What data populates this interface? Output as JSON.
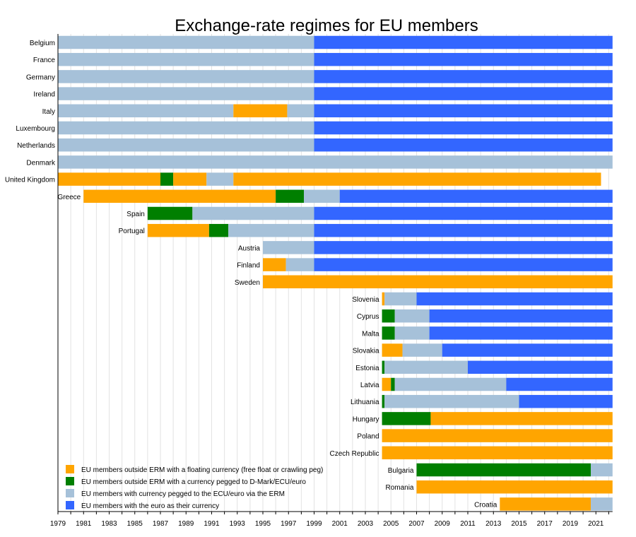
{
  "chart_data": {
    "type": "bar",
    "title": "Exchange-rate regimes for EU members",
    "xlim": [
      1979,
      2022.3
    ],
    "x_ticks": [
      1979,
      1981,
      1983,
      1985,
      1987,
      1989,
      1991,
      1993,
      1995,
      1997,
      1999,
      2001,
      2003,
      2005,
      2007,
      2009,
      2011,
      2013,
      2015,
      2017,
      2019,
      2021
    ],
    "grid": "vertical lines at every year",
    "legend_position": "bottom-left",
    "categories": {
      "floating": {
        "label": "EU members outside ERM with a floating currency (free float or crawling peg)",
        "color": "#ffa500"
      },
      "pegged_outside": {
        "label": "EU members outside ERM with a currency pegged to D-Mark/ECU/euro",
        "color": "#007f00"
      },
      "erm": {
        "label": "EU members with currency pegged to the ECU/euro via the ERM",
        "color": "#a6c1d9"
      },
      "euro": {
        "label": "EU members with the euro as their currency",
        "color": "#3366ff"
      }
    },
    "countries": [
      {
        "name": "Belgium",
        "segments": [
          [
            1979,
            1999,
            "erm"
          ],
          [
            1999,
            2022.3,
            "euro"
          ]
        ]
      },
      {
        "name": "France",
        "segments": [
          [
            1979,
            1999,
            "erm"
          ],
          [
            1999,
            2022.3,
            "euro"
          ]
        ]
      },
      {
        "name": "Germany",
        "segments": [
          [
            1979,
            1999,
            "erm"
          ],
          [
            1999,
            2022.3,
            "euro"
          ]
        ]
      },
      {
        "name": "Ireland",
        "segments": [
          [
            1979,
            1999,
            "erm"
          ],
          [
            1999,
            2022.3,
            "euro"
          ]
        ]
      },
      {
        "name": "Italy",
        "segments": [
          [
            1979,
            1992.7,
            "erm"
          ],
          [
            1992.7,
            1996.9,
            "floating"
          ],
          [
            1996.9,
            1999,
            "erm"
          ],
          [
            1999,
            2022.3,
            "euro"
          ]
        ]
      },
      {
        "name": "Luxembourg",
        "segments": [
          [
            1979,
            1999,
            "erm"
          ],
          [
            1999,
            2022.3,
            "euro"
          ]
        ]
      },
      {
        "name": "Netherlands",
        "segments": [
          [
            1979,
            1999,
            "erm"
          ],
          [
            1999,
            2022.3,
            "euro"
          ]
        ]
      },
      {
        "name": "Denmark",
        "segments": [
          [
            1979,
            2022.3,
            "erm"
          ]
        ]
      },
      {
        "name": "United Kingdom",
        "segments": [
          [
            1979,
            1987,
            "floating"
          ],
          [
            1987,
            1988,
            "pegged_outside"
          ],
          [
            1988,
            1990.6,
            "floating"
          ],
          [
            1990.6,
            1992.7,
            "erm"
          ],
          [
            1992.7,
            2021.4,
            "floating"
          ]
        ]
      },
      {
        "name": "Greece",
        "segments": [
          [
            1981,
            1996,
            "floating"
          ],
          [
            1996,
            1998.2,
            "pegged_outside"
          ],
          [
            1998.2,
            2001,
            "erm"
          ],
          [
            2001,
            2022.3,
            "euro"
          ]
        ]
      },
      {
        "name": "Spain",
        "segments": [
          [
            1986,
            1989.5,
            "pegged_outside"
          ],
          [
            1989.5,
            1999,
            "erm"
          ],
          [
            1999,
            2022.3,
            "euro"
          ]
        ]
      },
      {
        "name": "Portugal",
        "segments": [
          [
            1986,
            1990.8,
            "floating"
          ],
          [
            1990.8,
            1992.3,
            "pegged_outside"
          ],
          [
            1992.3,
            1999,
            "erm"
          ],
          [
            1999,
            2022.3,
            "euro"
          ]
        ]
      },
      {
        "name": "Austria",
        "segments": [
          [
            1995,
            1999,
            "erm"
          ],
          [
            1999,
            2022.3,
            "euro"
          ]
        ]
      },
      {
        "name": "Finland",
        "segments": [
          [
            1995,
            1996.8,
            "floating"
          ],
          [
            1996.8,
            1999,
            "erm"
          ],
          [
            1999,
            2022.3,
            "euro"
          ]
        ]
      },
      {
        "name": "Sweden",
        "segments": [
          [
            1995,
            2022.3,
            "floating"
          ]
        ]
      },
      {
        "name": "Slovenia",
        "segments": [
          [
            2004.3,
            2004.5,
            "floating"
          ],
          [
            2004.5,
            2007,
            "erm"
          ],
          [
            2007,
            2022.3,
            "euro"
          ]
        ]
      },
      {
        "name": "Cyprus",
        "segments": [
          [
            2004.3,
            2005.3,
            "pegged_outside"
          ],
          [
            2005.3,
            2008,
            "erm"
          ],
          [
            2008,
            2022.3,
            "euro"
          ]
        ]
      },
      {
        "name": "Malta",
        "segments": [
          [
            2004.3,
            2005.3,
            "pegged_outside"
          ],
          [
            2005.3,
            2008,
            "erm"
          ],
          [
            2008,
            2022.3,
            "euro"
          ]
        ]
      },
      {
        "name": "Slovakia",
        "segments": [
          [
            2004.3,
            2005.9,
            "floating"
          ],
          [
            2005.9,
            2009,
            "erm"
          ],
          [
            2009,
            2022.3,
            "euro"
          ]
        ]
      },
      {
        "name": "Estonia",
        "segments": [
          [
            2004.3,
            2004.5,
            "pegged_outside"
          ],
          [
            2004.5,
            2011,
            "erm"
          ],
          [
            2011,
            2022.3,
            "euro"
          ]
        ]
      },
      {
        "name": "Latvia",
        "segments": [
          [
            2004.3,
            2005,
            "floating"
          ],
          [
            2005,
            2005.3,
            "pegged_outside"
          ],
          [
            2005.3,
            2014,
            "erm"
          ],
          [
            2014,
            2022.3,
            "euro"
          ]
        ]
      },
      {
        "name": "Lithuania",
        "segments": [
          [
            2004.3,
            2004.5,
            "pegged_outside"
          ],
          [
            2004.5,
            2015,
            "erm"
          ],
          [
            2015,
            2022.3,
            "euro"
          ]
        ]
      },
      {
        "name": "Hungary",
        "segments": [
          [
            2004.3,
            2008.1,
            "pegged_outside"
          ],
          [
            2008.1,
            2022.3,
            "floating"
          ]
        ]
      },
      {
        "name": "Poland",
        "segments": [
          [
            2004.3,
            2022.3,
            "floating"
          ]
        ]
      },
      {
        "name": "Czech Republic",
        "segments": [
          [
            2004.3,
            2022.3,
            "floating"
          ]
        ]
      },
      {
        "name": "Bulgaria",
        "segments": [
          [
            2007,
            2020.6,
            "pegged_outside"
          ],
          [
            2020.6,
            2022.3,
            "erm"
          ]
        ]
      },
      {
        "name": "Romania",
        "segments": [
          [
            2007,
            2022.3,
            "floating"
          ]
        ]
      },
      {
        "name": "Croatia",
        "segments": [
          [
            2013.5,
            2020.6,
            "floating"
          ],
          [
            2020.6,
            2022.3,
            "erm"
          ]
        ]
      }
    ]
  }
}
